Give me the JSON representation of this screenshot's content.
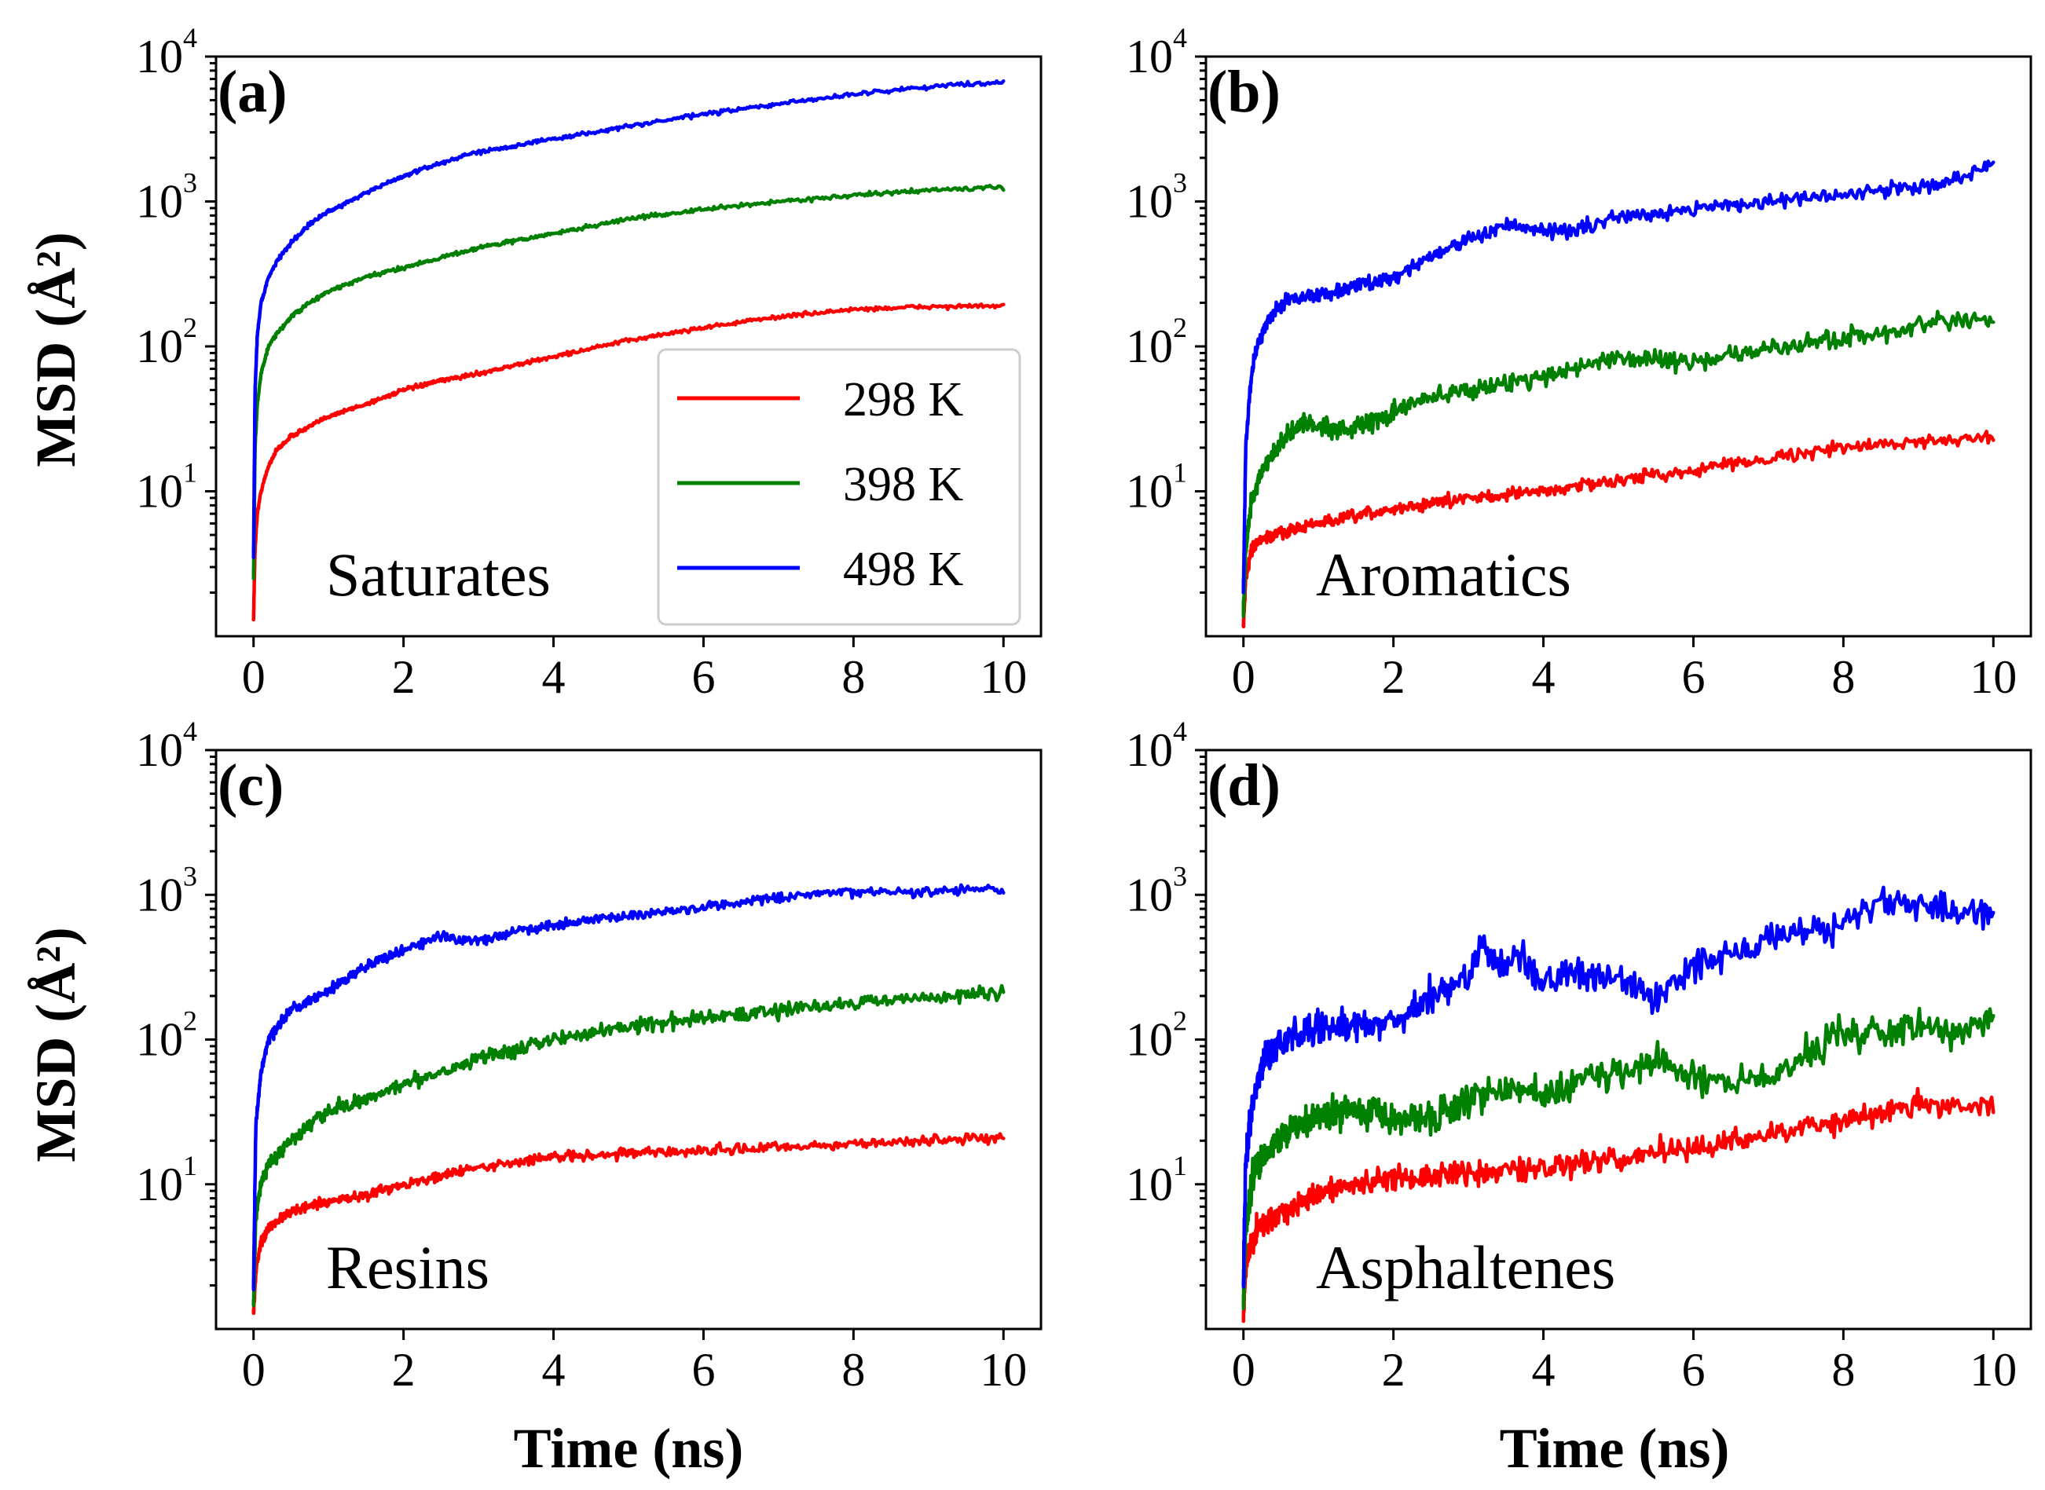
{
  "chart_data": {
    "type": "line",
    "layout": "2x2 grid",
    "xlabel": "Time (ns)",
    "ylabel": "MSD (Å²)",
    "yscale": "log",
    "xlim": [
      -0.5,
      10.5
    ],
    "ylim": [
      1,
      10000
    ],
    "xticks": [
      "0",
      "2",
      "4",
      "6",
      "8",
      "10"
    ],
    "yticks": [
      {
        "value": 10,
        "base": "10",
        "exp": "1"
      },
      {
        "value": 100,
        "base": "10",
        "exp": "2"
      },
      {
        "value": 1000,
        "base": "10",
        "exp": "3"
      },
      {
        "value": 10000,
        "base": "10",
        "exp": "4"
      }
    ],
    "legend": {
      "location": "lower-right of panel (a)",
      "entries": [
        {
          "label": "298 K",
          "color": "#ff0000"
        },
        {
          "label": "398 K",
          "color": "#008000"
        },
        {
          "label": "498 K",
          "color": "#0000ff"
        }
      ]
    },
    "panels": [
      {
        "label": "(a)",
        "name": "Saturates",
        "series": [
          {
            "name": "298 K",
            "color": "#ff0000",
            "noise": 0.01,
            "x": [
              0,
              0.02,
              0.05,
              0.1,
              0.2,
              0.3,
              0.5,
              0.75,
              1,
              1.5,
              2,
              2.5,
              3,
              4,
              5,
              6,
              7,
              8,
              9,
              10
            ],
            "y": [
              1.3,
              4,
              7,
              10,
              15,
              19,
              24,
              28,
              33,
              40,
              50,
              58,
              65,
              85,
              110,
              135,
              160,
              180,
              188,
              190
            ]
          },
          {
            "name": "398 K",
            "color": "#008000",
            "noise": 0.01,
            "x": [
              0,
              0.02,
              0.05,
              0.1,
              0.2,
              0.3,
              0.5,
              0.75,
              1,
              1.5,
              2,
              2.5,
              3,
              4,
              5,
              6,
              7,
              8,
              9,
              10
            ],
            "y": [
              2.5,
              20,
              40,
              65,
              100,
              120,
              160,
              200,
              240,
              300,
              350,
              410,
              480,
              600,
              760,
              880,
              1000,
              1100,
              1200,
              1250
            ]
          },
          {
            "name": "498 K",
            "color": "#0000ff",
            "noise": 0.01,
            "x": [
              0,
              0.02,
              0.05,
              0.1,
              0.2,
              0.3,
              0.5,
              0.75,
              1,
              1.5,
              2,
              2.5,
              3,
              4,
              5,
              6,
              7,
              8,
              9,
              10
            ],
            "y": [
              3.5,
              50,
              120,
              200,
              300,
              380,
              520,
              700,
              850,
              1150,
              1500,
              1850,
              2200,
              2700,
              3300,
              4000,
              4700,
              5500,
              6200,
              6700
            ]
          }
        ]
      },
      {
        "label": "(b)",
        "name": "Aromatics",
        "series": [
          {
            "name": "298 K",
            "color": "#ff0000",
            "noise": 0.03,
            "x": [
              0,
              0.03,
              0.1,
              0.2,
              0.5,
              1,
              2,
              3,
              4,
              5,
              6,
              7,
              8,
              9,
              10
            ],
            "y": [
              1.2,
              2.5,
              3.8,
              4.5,
              5.2,
              6,
              7.5,
              9,
              10,
              12,
              14,
              17,
              20,
              22,
              24
            ]
          },
          {
            "name": "398 K",
            "color": "#008000",
            "noise": 0.045,
            "x": [
              0,
              0.03,
              0.1,
              0.2,
              0.4,
              0.6,
              0.8,
              1,
              1.5,
              2,
              2.5,
              3,
              4,
              5,
              6,
              7,
              8,
              9,
              9.5,
              10
            ],
            "y": [
              1.5,
              4,
              8,
              12,
              18,
              25,
              30,
              28,
              27,
              35,
              45,
              50,
              62,
              85,
              78,
              95,
              115,
              135,
              150,
              150
            ]
          },
          {
            "name": "498 K",
            "color": "#0000ff",
            "noise": 0.035,
            "x": [
              0,
              0.03,
              0.1,
              0.2,
              0.4,
              0.6,
              0.8,
              1,
              1.5,
              2,
              2.5,
              3,
              3.5,
              4,
              4.5,
              5,
              6,
              7,
              8,
              8.5,
              9,
              9.5,
              10
            ],
            "y": [
              2,
              20,
              60,
              110,
              170,
              210,
              220,
              225,
              260,
              300,
              420,
              550,
              680,
              620,
              650,
              780,
              900,
              1000,
              1100,
              1200,
              1250,
              1450,
              1800
            ]
          }
        ]
      },
      {
        "label": "(c)",
        "name": "Resins",
        "series": [
          {
            "name": "298 K",
            "color": "#ff0000",
            "noise": 0.025,
            "x": [
              0,
              0.03,
              0.1,
              0.2,
              0.5,
              1,
              1.5,
              2,
              3,
              4,
              5,
              6,
              7,
              8,
              9,
              10
            ],
            "y": [
              1.3,
              2.5,
              4,
              5,
              6.5,
              7.5,
              8.5,
              10,
              13,
              15.5,
              16.5,
              17,
              18,
              19,
              20,
              21
            ]
          },
          {
            "name": "398 K",
            "color": "#008000",
            "noise": 0.035,
            "x": [
              0,
              0.03,
              0.1,
              0.2,
              0.5,
              1,
              1.5,
              2,
              2.5,
              3,
              4,
              5,
              6,
              7,
              8,
              9,
              10
            ],
            "y": [
              1.5,
              6,
              10,
              14,
              20,
              32,
              38,
              50,
              60,
              75,
              100,
              125,
              140,
              160,
              180,
              195,
              210
            ]
          },
          {
            "name": "498 K",
            "color": "#0000ff",
            "noise": 0.025,
            "x": [
              0,
              0.03,
              0.1,
              0.2,
              0.5,
              1,
              1.5,
              2,
              2.5,
              3,
              3.5,
              4,
              5,
              6,
              7,
              8,
              9,
              10
            ],
            "y": [
              2,
              25,
              60,
              100,
              160,
              220,
              320,
              420,
              520,
              480,
              560,
              620,
              720,
              820,
              950,
              1050,
              1050,
              1100
            ]
          }
        ]
      },
      {
        "label": "(d)",
        "name": "Asphaltenes",
        "series": [
          {
            "name": "298 K",
            "color": "#ff0000",
            "noise": 0.06,
            "x": [
              0,
              0.03,
              0.1,
              0.2,
              0.5,
              1,
              1.5,
              2,
              3,
              4,
              5,
              6,
              7,
              8,
              9,
              10
            ],
            "y": [
              1.2,
              2.5,
              4,
              5,
              6.5,
              8.5,
              10,
              11,
              12,
              13,
              15,
              18,
              22,
              28,
              35,
              36
            ]
          },
          {
            "name": "398 K",
            "color": "#008000",
            "noise": 0.08,
            "x": [
              0,
              0.03,
              0.1,
              0.2,
              0.5,
              1,
              1.5,
              2,
              2.5,
              3,
              3.5,
              4,
              4.5,
              5,
              5.5,
              6,
              6.5,
              7,
              7.5,
              8,
              9,
              9.5,
              10
            ],
            "y": [
              1.5,
              5,
              10,
              14,
              22,
              30,
              33,
              30,
              28,
              40,
              45,
              42,
              52,
              60,
              70,
              55,
              50,
              55,
              80,
              110,
              120,
              110,
              140
            ]
          },
          {
            "name": "498 K",
            "color": "#0000ff",
            "noise": 0.08,
            "x": [
              0,
              0.03,
              0.1,
              0.2,
              0.3,
              0.5,
              1,
              1.5,
              2,
              2.5,
              3,
              3.2,
              3.4,
              3.7,
              4,
              4.5,
              5,
              5.5,
              6,
              7,
              8,
              8.5,
              9,
              9.5,
              10
            ],
            "y": [
              2,
              15,
              30,
              55,
              80,
              95,
              120,
              125,
              130,
              200,
              270,
              500,
              300,
              380,
              250,
              280,
              270,
              200,
              320,
              500,
              600,
              900,
              850,
              750,
              750
            ]
          }
        ]
      }
    ]
  }
}
